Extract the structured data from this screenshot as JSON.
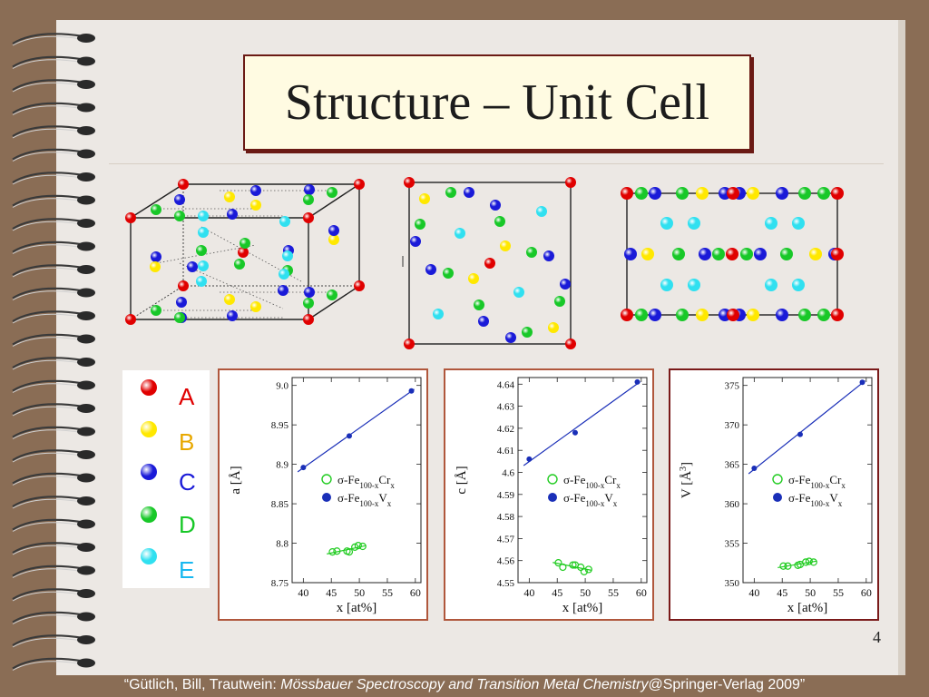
{
  "slide": {
    "title": "Structure – Unit Cell",
    "page_number": "4",
    "citation": {
      "prefix": "“Gütlich, Bill, Trautwein: ",
      "book": "Mössbauer Spectroscopy and Transition Metal Chemistry",
      "suffix": "@Springer-Verlag 2009”"
    }
  },
  "colors": {
    "A": "#e00000",
    "B": "#ffe800",
    "C": "#1a1ad8",
    "D": "#18c828",
    "E": "#30e0f0",
    "fit_line": "#1a2fb8",
    "cr_series": "#22cc22",
    "v_series": "#1a2fb8"
  },
  "legend": [
    {
      "site": "A",
      "label": "A",
      "color": "#e00000"
    },
    {
      "site": "B",
      "label": "B",
      "color": "#ffe800"
    },
    {
      "site": "C",
      "label": "C",
      "color": "#1a1ad8"
    },
    {
      "site": "D",
      "label": "D",
      "color": "#18c828"
    },
    {
      "site": "E",
      "label": "E",
      "color": "#30e0f0"
    }
  ],
  "chart_data": [
    {
      "type": "scatter",
      "ylabel": "a [Å]",
      "xlabel": "x [at%]",
      "xlim": [
        38,
        61
      ],
      "ylim": [
        8.75,
        9.01
      ],
      "xticks": [
        40,
        45,
        50,
        55,
        60
      ],
      "yticks": [
        8.75,
        8.8,
        8.85,
        8.9,
        8.95,
        9.0
      ],
      "ytick_labels": [
        "8.75",
        "8.8",
        "8.85",
        "8.9",
        "8.95",
        "9.0"
      ],
      "legend_position": "right",
      "series": [
        {
          "name_html": "σ-Fe<tspan baseline-shift='sub' font-size='9'>100-x</tspan>Cr<tspan baseline-shift='sub' font-size='9'>x</tspan>",
          "marker": "open",
          "fit": true,
          "x": [
            45.2,
            46.0,
            47.8,
            48.2,
            49.2,
            49.8,
            50.6
          ],
          "y": [
            8.789,
            8.79,
            8.79,
            8.789,
            8.795,
            8.797,
            8.796
          ]
        },
        {
          "name_html": "σ-Fe<tspan baseline-shift='sub' font-size='9'>100-x</tspan>V<tspan baseline-shift='sub' font-size='9'>x</tspan>",
          "marker": "filled",
          "fit": true,
          "x": [
            40.0,
            48.2,
            59.3
          ],
          "y": [
            8.896,
            8.936,
            8.993
          ]
        }
      ]
    },
    {
      "type": "scatter",
      "ylabel": "c [Å]",
      "xlabel": "x [at%]",
      "xlim": [
        38,
        61
      ],
      "ylim": [
        4.55,
        4.643
      ],
      "xticks": [
        40,
        45,
        50,
        55,
        60
      ],
      "yticks": [
        4.55,
        4.56,
        4.57,
        4.58,
        4.59,
        4.6,
        4.61,
        4.62,
        4.63,
        4.64
      ],
      "ytick_labels": [
        "4.55",
        "4.56",
        "4.57",
        "4.58",
        "4.59",
        "4.6",
        "4.61",
        "4.62",
        "4.63",
        "4.64"
      ],
      "legend_position": "right",
      "series": [
        {
          "name_html": "σ-Fe<tspan baseline-shift='sub' font-size='9'>100-x</tspan>Cr<tspan baseline-shift='sub' font-size='9'>x</tspan>",
          "marker": "open",
          "fit": true,
          "x": [
            45.2,
            46.0,
            47.8,
            48.2,
            49.2,
            49.8,
            50.6
          ],
          "y": [
            4.559,
            4.557,
            4.558,
            4.558,
            4.557,
            4.555,
            4.556
          ]
        },
        {
          "name_html": "σ-Fe<tspan baseline-shift='sub' font-size='9'>100-x</tspan>V<tspan baseline-shift='sub' font-size='9'>x</tspan>",
          "marker": "filled",
          "fit": true,
          "x": [
            40.0,
            48.2,
            59.3
          ],
          "y": [
            4.606,
            4.618,
            4.641
          ]
        }
      ]
    },
    {
      "type": "scatter",
      "ylabel": "V [Å3]",
      "xlabel": "x [at%]",
      "xlim": [
        38,
        61
      ],
      "ylim": [
        350,
        376
      ],
      "xticks": [
        40,
        45,
        50,
        55,
        60
      ],
      "yticks": [
        350,
        355,
        360,
        365,
        370,
        375
      ],
      "ytick_labels": [
        "350",
        "355",
        "360",
        "365",
        "370",
        "375"
      ],
      "legend_position": "right",
      "series": [
        {
          "name_html": "σ-Fe<tspan baseline-shift='sub' font-size='9'>100-x</tspan>Cr<tspan baseline-shift='sub' font-size='9'>x</tspan>",
          "marker": "open",
          "fit": true,
          "x": [
            45.2,
            46.0,
            47.8,
            48.2,
            49.2,
            49.8,
            50.6
          ],
          "y": [
            352.1,
            352.1,
            352.2,
            352.3,
            352.6,
            352.7,
            352.6
          ]
        },
        {
          "name_html": "σ-Fe<tspan baseline-shift='sub' font-size='9'>100-x</tspan>V<tspan baseline-shift='sub' font-size='9'>x</tspan>",
          "marker": "filled",
          "fit": true,
          "x": [
            40.0,
            48.2,
            59.3
          ],
          "y": [
            364.5,
            368.8,
            375.4
          ]
        }
      ]
    }
  ]
}
